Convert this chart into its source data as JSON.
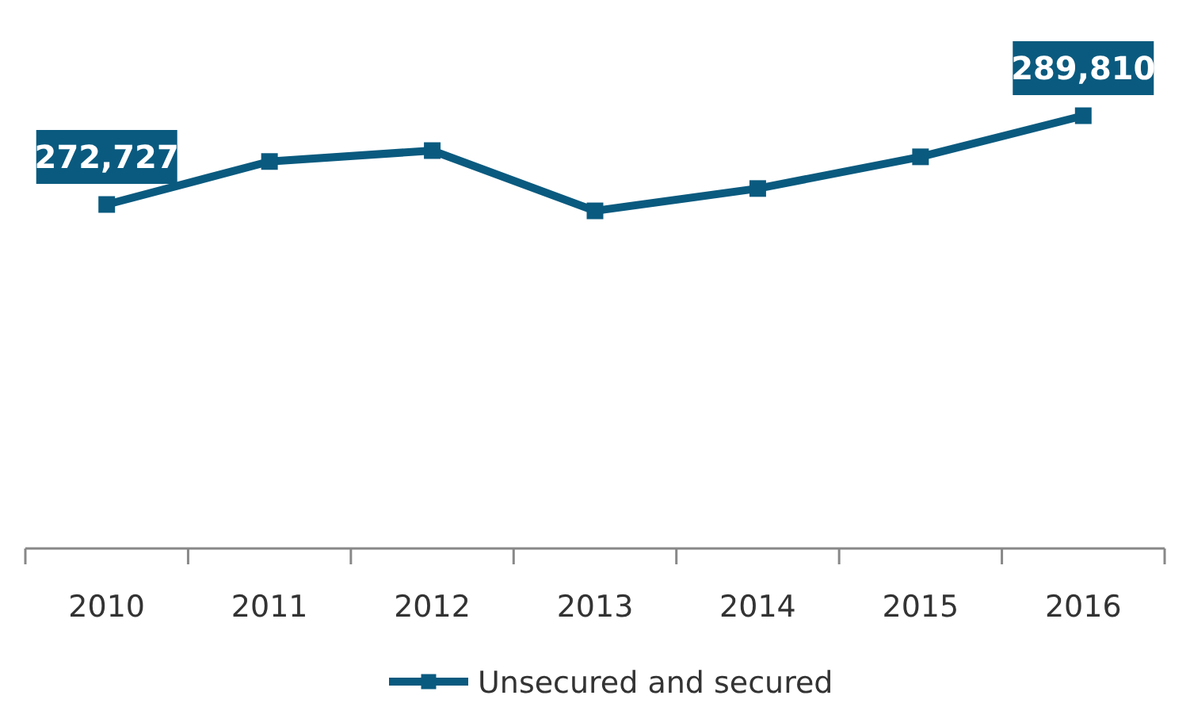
{
  "chart_data": {
    "type": "line",
    "categories": [
      "2010",
      "2011",
      "2012",
      "2013",
      "2014",
      "2015",
      "2016"
    ],
    "series": [
      {
        "name": "Unsecured and secured",
        "color": "#0a5a7f",
        "values": [
          272727,
          281000,
          283100,
          271500,
          275800,
          281900,
          289810
        ],
        "value_labels": [
          "272,727",
          null,
          null,
          null,
          null,
          null,
          "289,810"
        ]
      }
    ],
    "tick_labels": "x",
    "legend": "bottom",
    "marker": "square",
    "line_style": "solid"
  }
}
